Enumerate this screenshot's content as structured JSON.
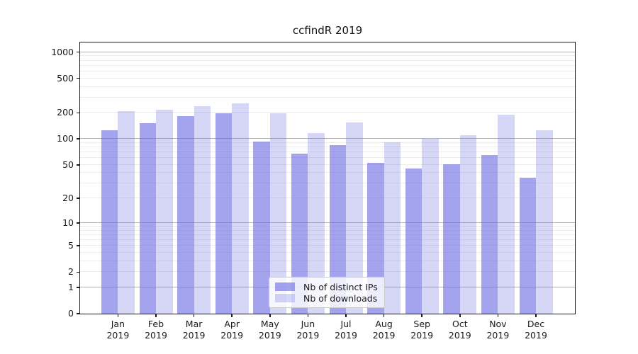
{
  "page": {
    "background": "#ffffff"
  },
  "chart_data": {
    "type": "bar",
    "title": "ccfindR 2019",
    "categories": [
      "Jan 2019",
      "Feb 2019",
      "Mar 2019",
      "Apr 2019",
      "May 2019",
      "Jun 2019",
      "Jul 2019",
      "Aug 2019",
      "Sep 2019",
      "Oct 2019",
      "Nov 2019",
      "Dec 2019"
    ],
    "series": [
      {
        "name": "Nb of distinct IPs",
        "color": "#6a6ae4",
        "alpha": 0.62,
        "values": [
          127,
          151,
          184,
          198,
          93,
          67,
          85,
          53,
          45,
          51,
          65,
          35
        ]
      },
      {
        "name": "Nb of downloads",
        "color": "#6a6ae4",
        "alpha": 0.28,
        "values": [
          210,
          216,
          241,
          257,
          197,
          118,
          154,
          91,
          100,
          110,
          190,
          125
        ]
      }
    ],
    "xlabel": "",
    "ylabel": "",
    "yscale": "log1p",
    "yticks": [
      0,
      1,
      2,
      5,
      10,
      20,
      50,
      100,
      200,
      500,
      1000
    ],
    "ylim": [
      0,
      1290
    ],
    "grid": true,
    "legend_position": "lower-center",
    "axis_color": "#1a1a1a",
    "major_grid_color": "#b0b0b0",
    "minor_grid_color": "#ebebeb"
  }
}
